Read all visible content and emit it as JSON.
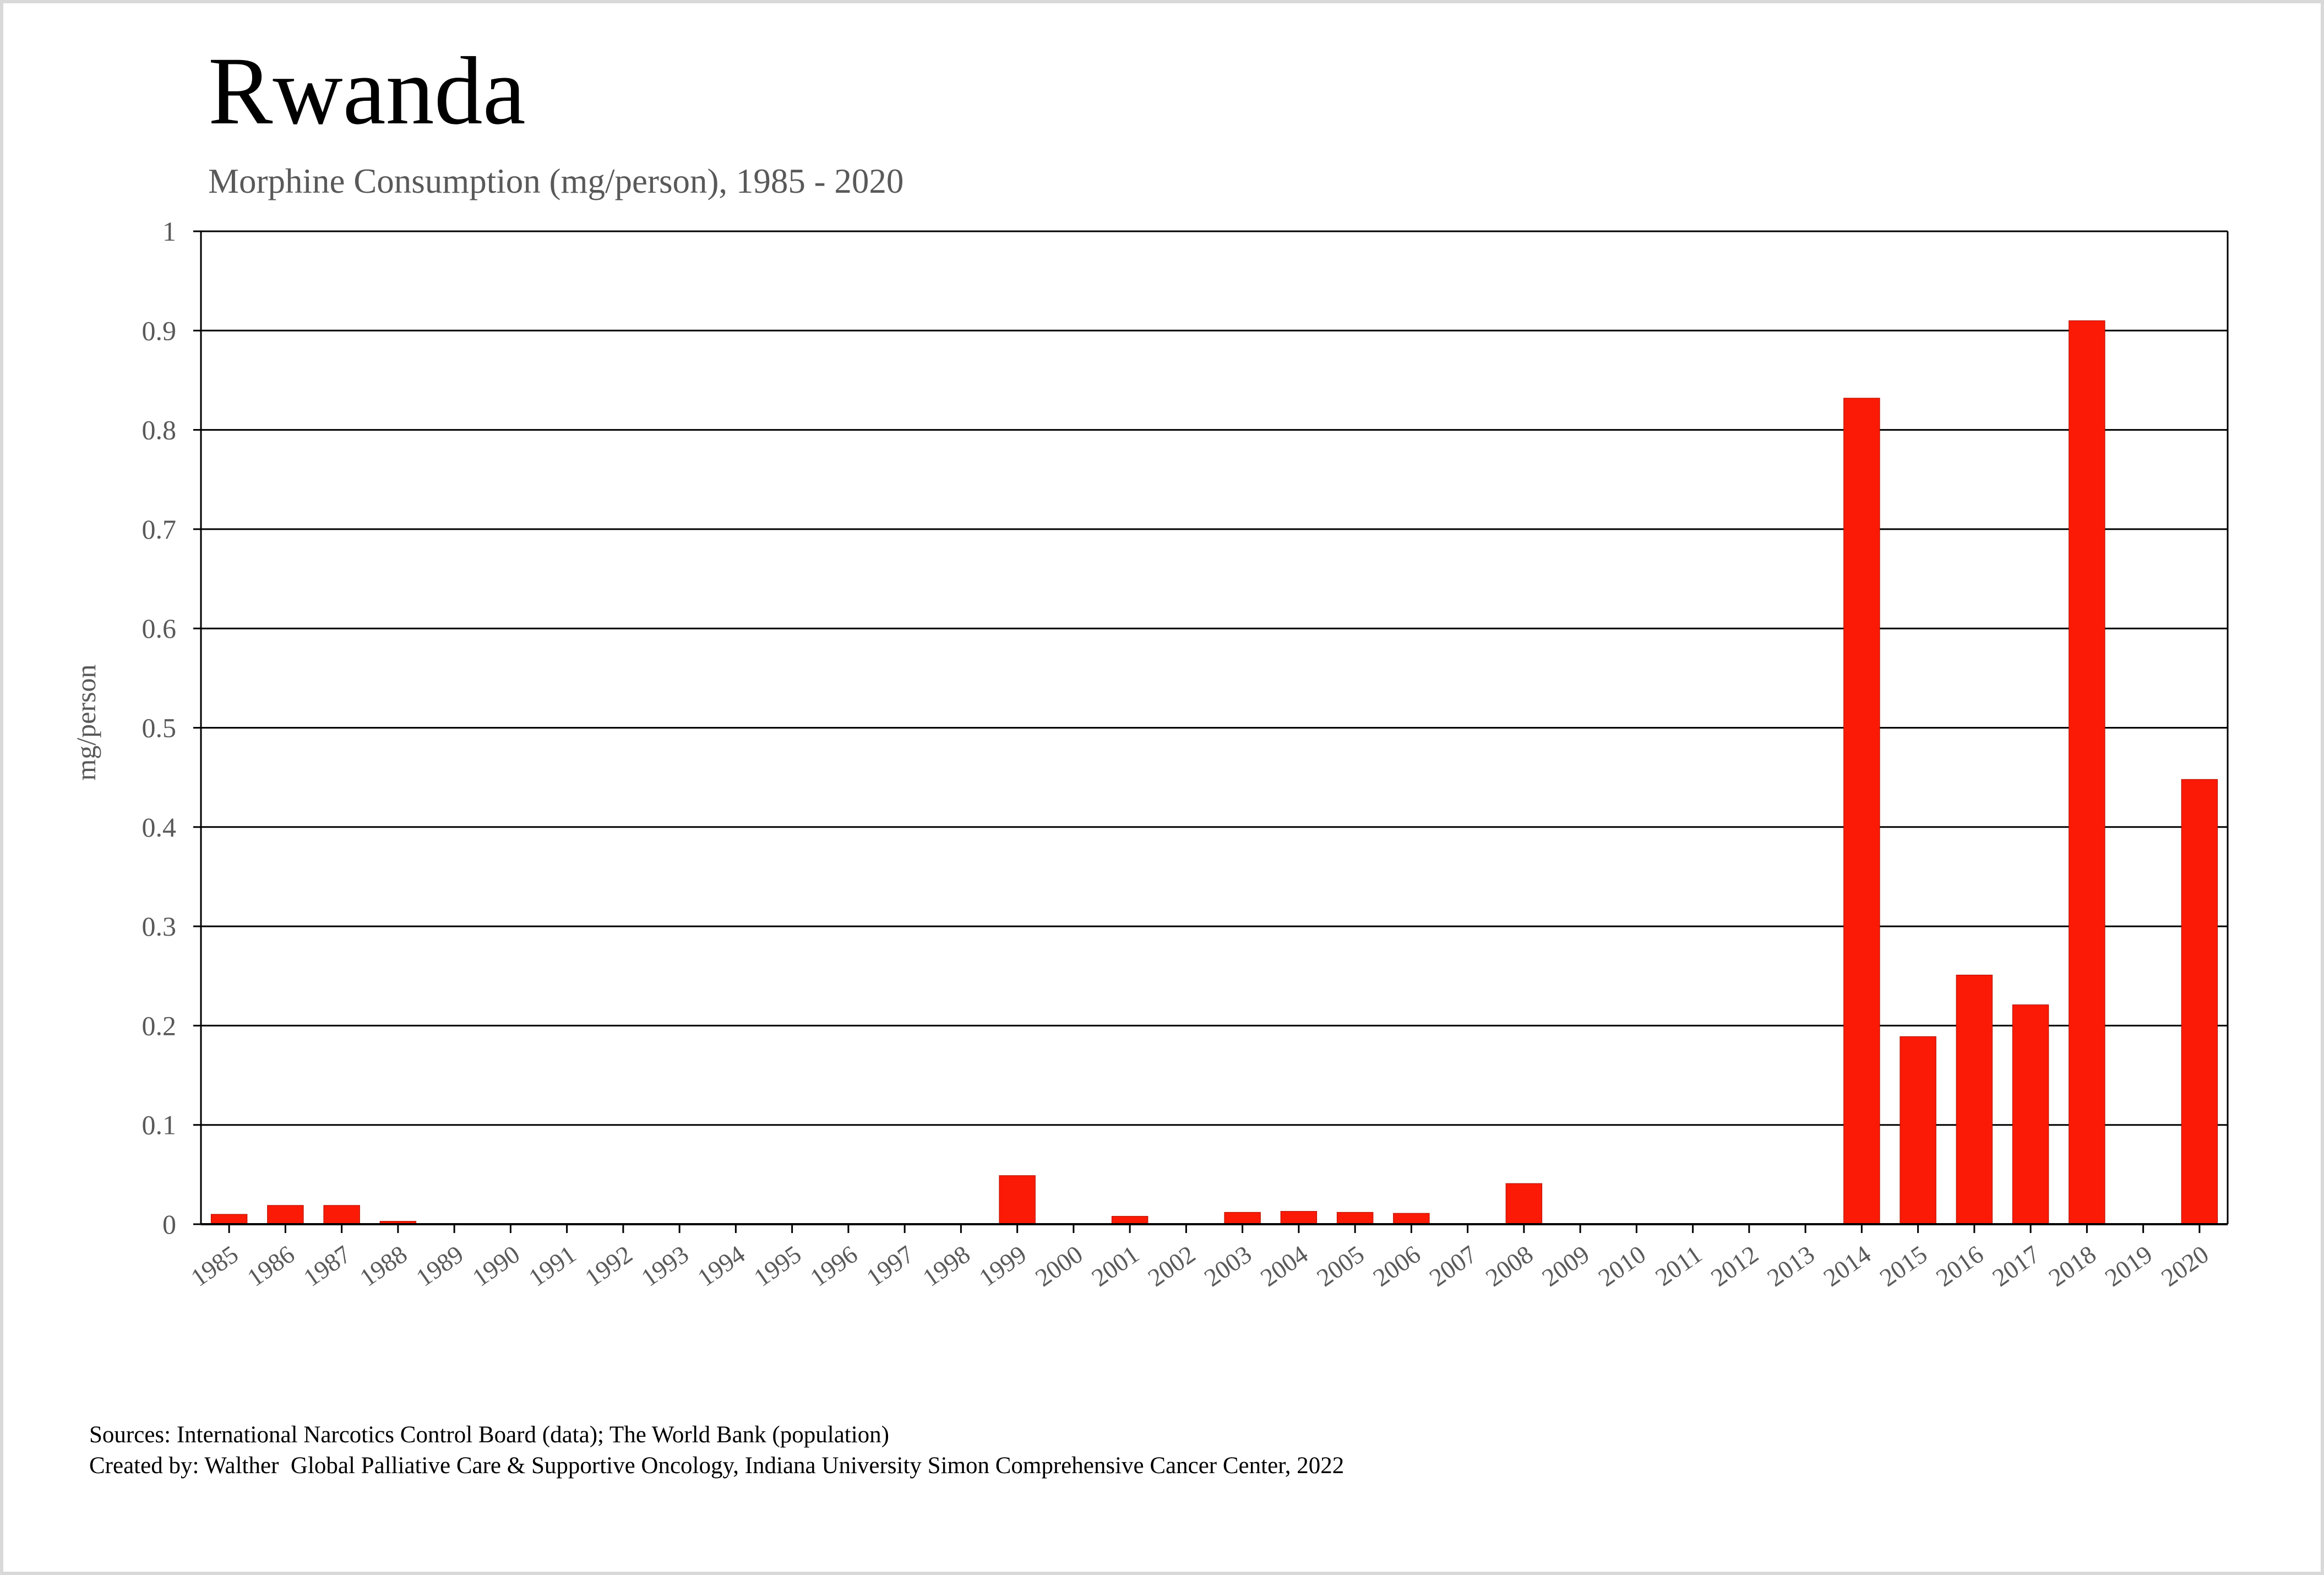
{
  "title": "Rwanda",
  "subtitle": "Morphine Consumption (mg/person), 1985 - 2020",
  "footer": {
    "sources": "Sources: International Narcotics Control Board (data); The World Bank (population)",
    "created_by": "Created by: Walther  Global Palliative Care & Supportive Oncology, Indiana University Simon Comprehensive Cancer Center, 2022"
  },
  "colors": {
    "bar": "#fa1a05",
    "gridline": "#000000",
    "axis_text": "#595959"
  },
  "chart_data": {
    "type": "bar",
    "title": "Rwanda",
    "subtitle": "Morphine Consumption (mg/person), 1985 - 2020",
    "xlabel": "",
    "ylabel": "mg/person",
    "ylim": [
      0,
      1
    ],
    "yticks": [
      "0",
      "0.1",
      "0.2",
      "0.3",
      "0.4",
      "0.5",
      "0.6",
      "0.7",
      "0.8",
      "0.9",
      "1"
    ],
    "grid": true,
    "legend": "none",
    "categories": [
      "1985",
      "1986",
      "1987",
      "1988",
      "1989",
      "1990",
      "1991",
      "1992",
      "1993",
      "1994",
      "1995",
      "1996",
      "1997",
      "1998",
      "1999",
      "2000",
      "2001",
      "2002",
      "2003",
      "2004",
      "2005",
      "2006",
      "2007",
      "2008",
      "2009",
      "2010",
      "2011",
      "2012",
      "2013",
      "2014",
      "2015",
      "2016",
      "2017",
      "2018",
      "2019",
      "2020"
    ],
    "values": [
      0.01,
      0.019,
      0.019,
      0.003,
      0,
      0,
      0,
      0,
      0,
      0,
      0,
      0,
      0,
      0,
      0.049,
      0,
      0.008,
      0,
      0.012,
      0.013,
      0.012,
      0.011,
      0,
      0.041,
      0,
      0,
      0,
      0,
      0,
      0.832,
      0.189,
      0.251,
      0.221,
      0.91,
      0,
      0.448
    ]
  }
}
